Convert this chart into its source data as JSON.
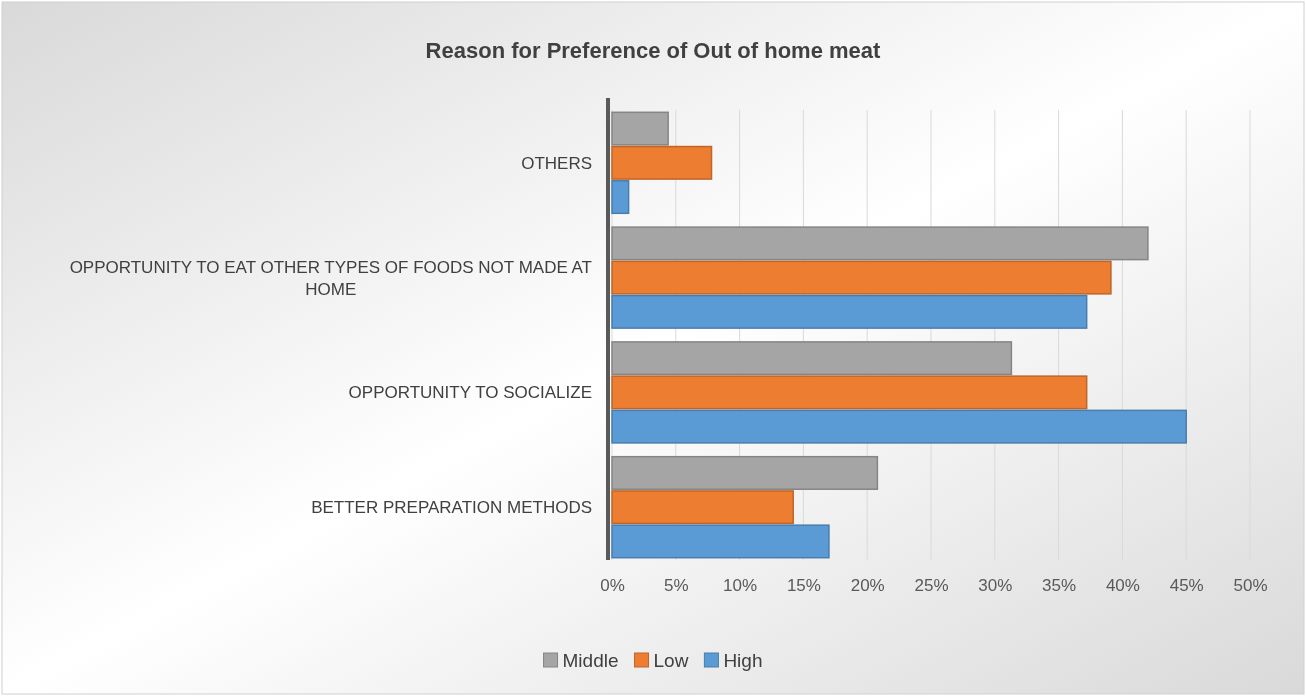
{
  "chart_data": {
    "type": "bar",
    "orientation": "horizontal",
    "title": "Reason for Preference of Out of home meat",
    "categories": [
      "OTHERS",
      "OPPORTUNITY TO EAT OTHER TYPES OF FOODS NOT MADE AT HOME",
      "OPPORTUNITY TO SOCIALIZE",
      "BETTER PREPARATION METHODS"
    ],
    "series": [
      {
        "name": "Middle",
        "color": "#a5a5a5",
        "values": [
          4.4,
          42,
          31.3,
          20.8
        ]
      },
      {
        "name": "Low",
        "color": "#ed7d31",
        "values": [
          7.8,
          39.1,
          37.2,
          14.2
        ]
      },
      {
        "name": "High",
        "color": "#5b9bd5",
        "values": [
          1.3,
          37.2,
          45,
          17
        ]
      }
    ],
    "xlim": [
      0,
      50
    ],
    "xticks": [
      {
        "value": 0,
        "label": "0%"
      },
      {
        "value": 5,
        "label": "5%"
      },
      {
        "value": 10,
        "label": "10%"
      },
      {
        "value": 15,
        "label": "15%"
      },
      {
        "value": 20,
        "label": "20%"
      },
      {
        "value": 25,
        "label": "25%"
      },
      {
        "value": 30,
        "label": "30%"
      },
      {
        "value": 35,
        "label": "35%"
      },
      {
        "value": 40,
        "label": "40%"
      },
      {
        "value": 45,
        "label": "45%"
      },
      {
        "value": 50,
        "label": "50%"
      }
    ],
    "grid": "x",
    "legend": "bottom"
  }
}
